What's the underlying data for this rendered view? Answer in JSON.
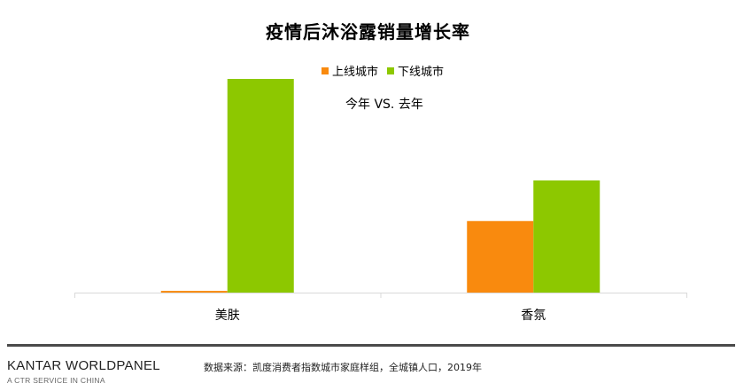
{
  "chart_data": {
    "type": "bar",
    "title": "疫情后沐浴露销量增长率",
    "annotation": "今年 VS. 去年",
    "categories": [
      "美肤",
      "香氛"
    ],
    "series": [
      {
        "name": "上线城市",
        "color": "#F98A0E",
        "values": [
          0.8,
          33.5
        ]
      },
      {
        "name": "下线城市",
        "color": "#8DC800",
        "values": [
          100,
          52.5
        ]
      }
    ],
    "ylim": [
      0,
      100
    ],
    "xlabel": "",
    "ylabel": "",
    "grid": false,
    "legend": "top-center"
  },
  "footer": {
    "brand": "KANTAR WORLDPANEL",
    "brand_sub": "A CTR SERVICE IN CHINA",
    "source": "数据来源：凯度消费者指数城市家庭样组，全城镇人口，2019年"
  }
}
